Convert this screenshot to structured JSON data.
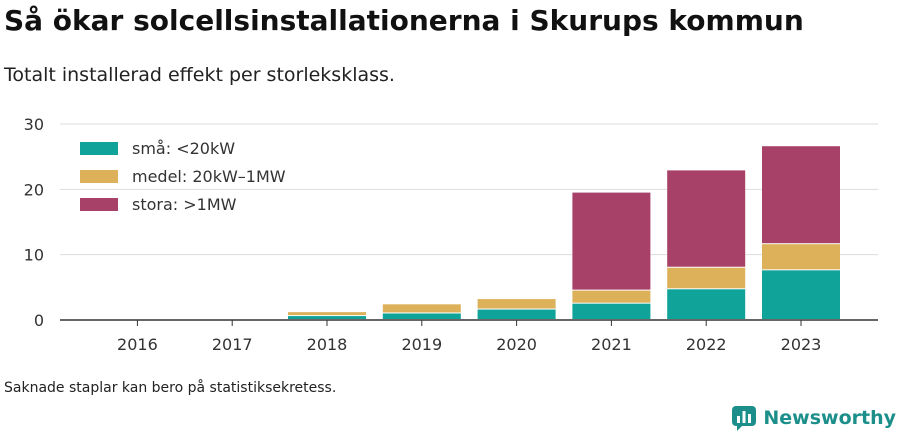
{
  "title": "Så ökar solcellsinstallationerna i Skurups kommun",
  "subtitle": "Totalt installerad effekt per storleksklass.",
  "footnote": "Saknade staplar kan bero på statistiksekretess.",
  "brand": {
    "name": "Newsworthy",
    "icon": "newsworthy-logo-icon"
  },
  "chart_data": {
    "type": "bar",
    "stacked": true,
    "categories": [
      "2016",
      "2017",
      "2018",
      "2019",
      "2020",
      "2021",
      "2022",
      "2023"
    ],
    "series": [
      {
        "name": "små: <20kW",
        "color": "#0fa39a",
        "values": [
          0,
          0,
          0.6,
          1.0,
          1.6,
          2.5,
          4.7,
          7.6
        ]
      },
      {
        "name": "medel: 20kW–1MW",
        "color": "#ddb05a",
        "values": [
          0,
          0,
          0.6,
          1.4,
          1.6,
          2.0,
          3.3,
          4.0
        ]
      },
      {
        "name": "stora: >1MW",
        "color": "#a84168",
        "values": [
          0,
          0,
          0,
          0,
          0,
          15.0,
          14.9,
          15.0
        ]
      }
    ],
    "ylim": [
      0,
      30
    ],
    "yticks": [
      0,
      10,
      20,
      30
    ],
    "grid": true,
    "legend_position": "top-left",
    "xlabel": "",
    "ylabel": ""
  }
}
